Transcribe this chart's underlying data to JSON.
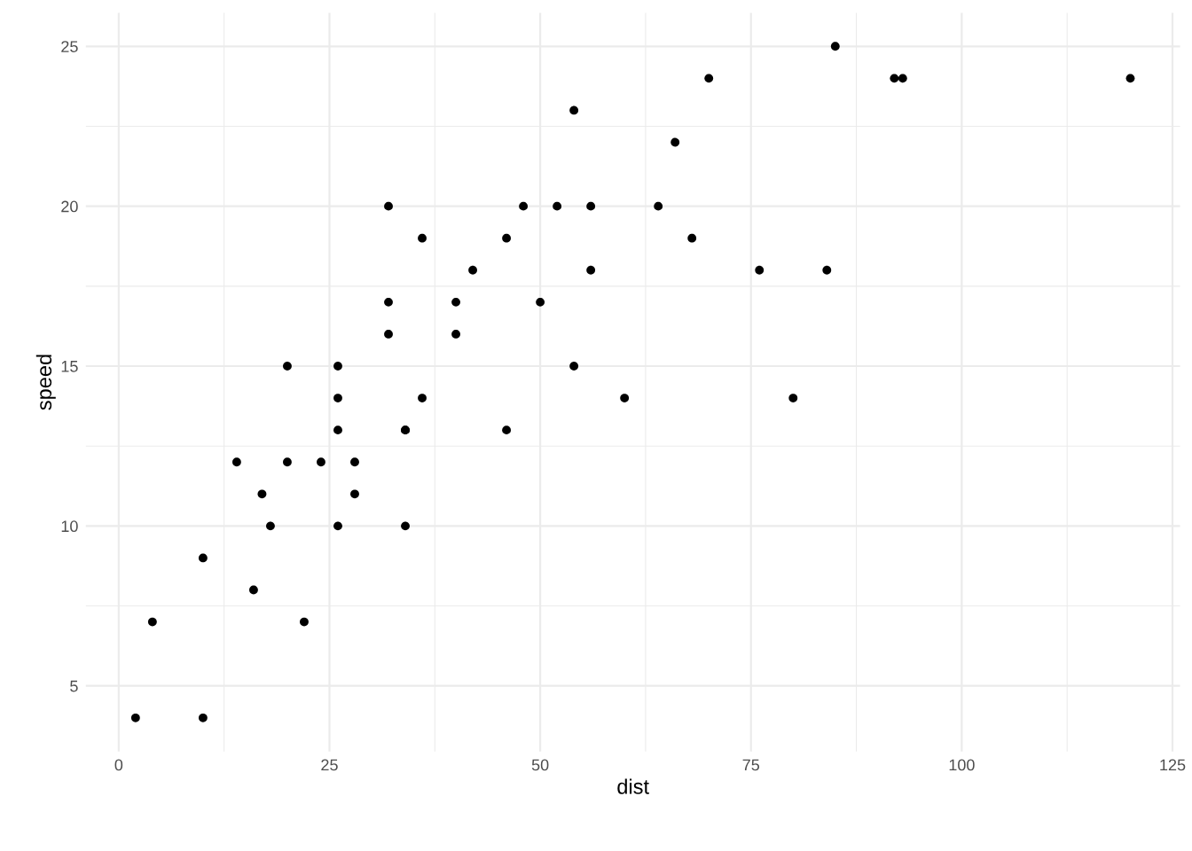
{
  "chart_data": {
    "type": "scatter",
    "xlabel": "dist",
    "ylabel": "speed",
    "x": [
      2,
      10,
      4,
      22,
      16,
      10,
      18,
      26,
      34,
      17,
      28,
      14,
      20,
      24,
      28,
      26,
      34,
      34,
      46,
      26,
      36,
      60,
      80,
      20,
      26,
      54,
      32,
      40,
      32,
      40,
      50,
      42,
      56,
      76,
      84,
      36,
      46,
      68,
      32,
      48,
      52,
      56,
      64,
      66,
      54,
      70,
      92,
      93,
      120,
      85
    ],
    "series": [
      {
        "color": "#000000",
        "values": [
          4,
          4,
          7,
          7,
          8,
          9,
          10,
          10,
          10,
          11,
          11,
          12,
          12,
          12,
          12,
          13,
          13,
          13,
          13,
          14,
          14,
          14,
          14,
          15,
          15,
          15,
          16,
          16,
          17,
          17,
          17,
          18,
          18,
          18,
          18,
          19,
          19,
          19,
          20,
          20,
          20,
          20,
          20,
          22,
          23,
          24,
          24,
          24,
          24,
          25
        ]
      }
    ],
    "xlim": [
      -3.9,
      125.9
    ],
    "ylim": [
      2.95,
      26.05
    ],
    "xticks": [
      0,
      25,
      50,
      75,
      100,
      125
    ],
    "yticks": [
      5,
      10,
      15,
      20,
      25
    ],
    "grid": true,
    "marker": "circle",
    "legend": false
  }
}
